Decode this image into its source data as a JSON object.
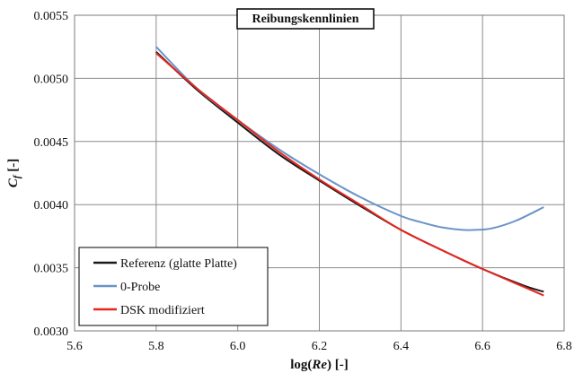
{
  "chart_data": {
    "type": "line",
    "title": "Reibungskennlinien",
    "xlabel": {
      "prefix": "log(",
      "italic": "Re",
      "suffix": ") [-]"
    },
    "ylabel": {
      "symbol": "C",
      "subscript": "f",
      "suffix": " [-]"
    },
    "xlim": [
      5.6,
      6.8
    ],
    "ylim": [
      0.003,
      0.0055
    ],
    "xticks": [
      5.6,
      5.8,
      6.0,
      6.2,
      6.4,
      6.6,
      6.8
    ],
    "xtick_labels": [
      "5.6",
      "5.8",
      "6.0",
      "6.2",
      "6.4",
      "6.6",
      "6.8"
    ],
    "yticks": [
      0.003,
      0.0035,
      0.004,
      0.0045,
      0.005,
      0.0055
    ],
    "ytick_labels": [
      "0.0030",
      "0.0035",
      "0.0040",
      "0.0045",
      "0.0050",
      "0.0055"
    ],
    "grid": true,
    "legend_position": "bottom-left",
    "series": [
      {
        "name": "Referenz (glatte Platte)",
        "color": "#1a1a1a",
        "x": [
          5.8,
          5.9,
          6.0,
          6.1,
          6.2,
          6.3,
          6.4,
          6.5,
          6.6,
          6.7,
          6.75
        ],
        "y": [
          0.00521,
          0.00491,
          0.00465,
          0.0044,
          0.00419,
          0.00399,
          0.0038,
          0.00364,
          0.00349,
          0.00336,
          0.00331
        ]
      },
      {
        "name": "0-Probe",
        "color": "#6a93c8",
        "x": [
          5.8,
          5.9,
          6.0,
          6.1,
          6.2,
          6.3,
          6.4,
          6.45,
          6.5,
          6.55,
          6.58,
          6.62,
          6.68,
          6.75
        ],
        "y": [
          0.00525,
          0.00492,
          0.00467,
          0.00444,
          0.00424,
          0.00406,
          0.00391,
          0.00386,
          0.00382,
          0.0038,
          0.0038,
          0.00381,
          0.00387,
          0.00398
        ]
      },
      {
        "name": "DSK modifiziert",
        "color": "#e8261e",
        "x": [
          5.8,
          5.9,
          6.0,
          6.1,
          6.2,
          6.3,
          6.4,
          6.5,
          6.6,
          6.7,
          6.75
        ],
        "y": [
          0.0052,
          0.00492,
          0.00467,
          0.00442,
          0.0042,
          0.004,
          0.0038,
          0.00364,
          0.00349,
          0.00335,
          0.00328
        ]
      }
    ]
  }
}
